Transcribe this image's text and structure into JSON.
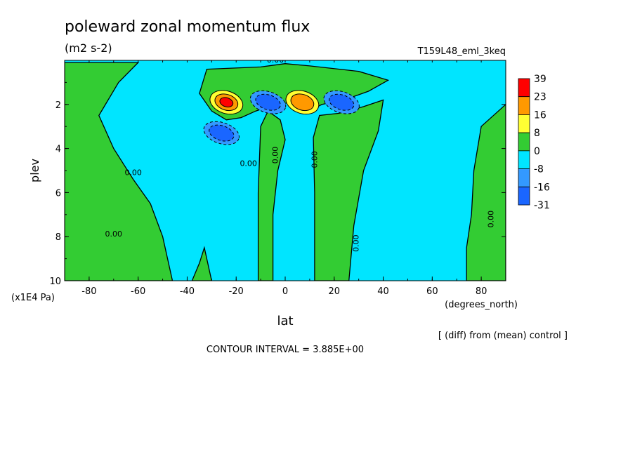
{
  "chart_data": {
    "type": "heatmap",
    "title": "poleward zonal momentum flux",
    "subtitle": "(m2 s-2)",
    "run_label": "T159L48_eml_3keq",
    "xlabel": "lat",
    "xunits": "(degrees_north)",
    "ylabel": "plev",
    "yunits": "(x1E4 Pa)",
    "xlim": [
      -90,
      90
    ],
    "ylim": [
      10,
      0
    ],
    "x_ticks": [
      "-80",
      "-60",
      "-40",
      "-20",
      "0",
      "20",
      "40",
      "60",
      "80"
    ],
    "y_ticks": [
      "2",
      "4",
      "6",
      "8",
      "10"
    ],
    "contour_labels": [
      "0.00"
    ],
    "legend": {
      "placement": "right",
      "levels": [
        "39",
        "23",
        "16",
        "8",
        "0",
        "-8",
        "-16",
        "-31"
      ],
      "colors": [
        "#ff0000",
        "#ff9900",
        "#ffff33",
        "#33cc33",
        "#00e5ff",
        "#3399ff",
        "#1a66ff"
      ]
    },
    "note_diff": "[ (diff) from (mean) control ]",
    "contour_interval": "CONTOUR INTERVAL = 3.885E+00",
    "background_color": "#00e5ff",
    "positive_regions": [
      {
        "name": "south-polar",
        "poly": [
          [
            -90,
            0.1
          ],
          [
            -60,
            0.1
          ],
          [
            -68,
            1
          ],
          [
            -76,
            2.5
          ],
          [
            -70,
            4
          ],
          [
            -62,
            5.4
          ],
          [
            -55,
            6.5
          ],
          [
            -50,
            8
          ],
          [
            -46,
            10
          ],
          [
            -90,
            10
          ]
        ]
      },
      {
        "name": "upper-band",
        "poly": [
          [
            -32,
            0.4
          ],
          [
            -10,
            0.3
          ],
          [
            0,
            0.15
          ],
          [
            10,
            0.25
          ],
          [
            30,
            0.5
          ],
          [
            42,
            0.9
          ],
          [
            34,
            1.4
          ],
          [
            24,
            1.8
          ],
          [
            15,
            2.0
          ],
          [
            8,
            2.4
          ],
          [
            3,
            1.9
          ],
          [
            -4,
            2.0
          ],
          [
            -12,
            2.3
          ],
          [
            -18,
            2.6
          ],
          [
            -24,
            2.7
          ],
          [
            -30,
            2.3
          ],
          [
            -35,
            1.5
          ]
        ]
      },
      {
        "name": "equatorial-column",
        "poly": [
          [
            -11,
            10
          ],
          [
            -11,
            6
          ],
          [
            -10,
            3
          ],
          [
            -7,
            2.3
          ],
          [
            -2,
            2.7
          ],
          [
            0,
            3.6
          ],
          [
            -3,
            5.0
          ],
          [
            -5,
            7
          ],
          [
            -5,
            10
          ]
        ]
      },
      {
        "name": "nh-subtropical-column",
        "poly": [
          [
            12,
            10
          ],
          [
            12,
            6
          ],
          [
            11.5,
            3.5
          ],
          [
            14,
            2.5
          ],
          [
            22,
            2.4
          ],
          [
            32,
            2.1
          ],
          [
            40,
            1.8
          ],
          [
            38,
            3.2
          ],
          [
            32,
            5
          ],
          [
            28,
            7.5
          ],
          [
            26,
            10
          ]
        ]
      },
      {
        "name": "north-polar",
        "poly": [
          [
            90,
            2
          ],
          [
            80,
            3
          ],
          [
            77,
            5
          ],
          [
            76,
            7
          ],
          [
            74,
            8.5
          ],
          [
            74,
            10
          ],
          [
            90,
            10
          ]
        ]
      },
      {
        "name": "sh-mid-lower",
        "poly": [
          [
            -30,
            10
          ],
          [
            -33,
            8.5
          ],
          [
            -35,
            9.2
          ],
          [
            -38,
            10
          ]
        ]
      }
    ],
    "extrema": [
      {
        "name": "max-sh-upper",
        "lat": -24,
        "plev": 1.9,
        "value": 39
      },
      {
        "name": "min-sh-upper",
        "lat": -26,
        "plev": 3.3,
        "value": -16
      },
      {
        "name": "min-eq-upper",
        "lat": -7,
        "plev": 1.9,
        "value": -16
      },
      {
        "name": "max-nh-upper",
        "lat": 7,
        "plev": 1.9,
        "value": 16
      },
      {
        "name": "min-nh-upper",
        "lat": 23,
        "plev": 1.9,
        "value": -31
      }
    ]
  }
}
